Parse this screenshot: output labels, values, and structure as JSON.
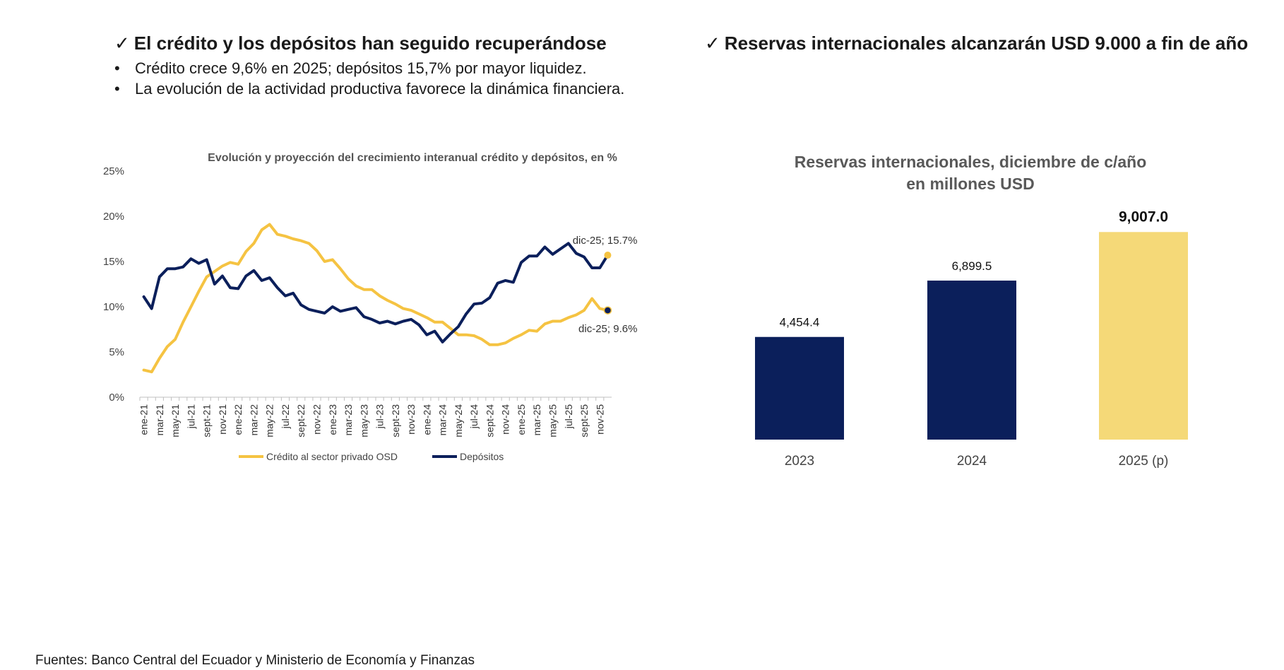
{
  "left_panel": {
    "check_icon": "check-icon",
    "heading": "El crédito y los depósitos han  seguido recuperándose",
    "bullets": [
      "Crédito crece 9,6% en 2025; depósitos 15,7% por mayor liquidez.",
      "La evolución de la actividad productiva favorece la dinámica financiera."
    ]
  },
  "right_panel": {
    "check_icon": "check-icon",
    "heading": "Reservas internacionales alcanzarán USD 9.000 a fin de año"
  },
  "footer": "Fuentes: Banco Central del Ecuador y Ministerio de Economía y Finanzas",
  "chart_data": [
    {
      "type": "line",
      "title": "Evolución y proyección del  crecimiento interanual crédito y depósitos, en %",
      "xlabel": "",
      "ylabel": "",
      "ylim": [
        0,
        25
      ],
      "yticks": [
        "0%",
        "5%",
        "10%",
        "15%",
        "20%",
        "25%"
      ],
      "ytick_values": [
        0,
        5,
        10,
        15,
        20,
        25
      ],
      "x_tick_labels": [
        "ene-21",
        "mar-21",
        "may-21",
        "jul-21",
        "sept-21",
        "nov-21",
        "ene-22",
        "mar-22",
        "may-22",
        "jul-22",
        "sept-22",
        "nov-22",
        "ene-23",
        "mar-23",
        "may-23",
        "jul-23",
        "sept-23",
        "nov-23",
        "ene-24",
        "mar-24",
        "may-24",
        "jul-24",
        "sept-24",
        "nov-24",
        "ene-25",
        "mar-25",
        "may-25",
        "jul-25",
        "sept-25",
        "nov-25"
      ],
      "x": [
        "ene-21",
        "feb-21",
        "mar-21",
        "abr-21",
        "may-21",
        "jun-21",
        "jul-21",
        "ago-21",
        "sept-21",
        "oct-21",
        "nov-21",
        "dic-21",
        "ene-22",
        "feb-22",
        "mar-22",
        "abr-22",
        "may-22",
        "jun-22",
        "jul-22",
        "ago-22",
        "sept-22",
        "oct-22",
        "nov-22",
        "dic-22",
        "ene-23",
        "feb-23",
        "mar-23",
        "abr-23",
        "may-23",
        "jun-23",
        "jul-23",
        "ago-23",
        "sept-23",
        "oct-23",
        "nov-23",
        "dic-23",
        "ene-24",
        "feb-24",
        "mar-24",
        "abr-24",
        "may-24",
        "jun-24",
        "jul-24",
        "ago-24",
        "sept-24",
        "oct-24",
        "nov-24",
        "dic-24",
        "ene-25",
        "feb-25",
        "mar-25",
        "abr-25",
        "may-25",
        "jun-25",
        "jul-25",
        "ago-25",
        "sept-25",
        "oct-25",
        "nov-25",
        "dic-25"
      ],
      "grid": false,
      "legend_position": "bottom",
      "series": [
        {
          "name": "Crédito al sector privado OSD",
          "color": "#F5C342",
          "values": [
            3.0,
            2.8,
            4.3,
            5.6,
            6.4,
            8.3,
            10.0,
            11.7,
            13.3,
            13.9,
            14.5,
            14.9,
            14.7,
            16.1,
            17.0,
            18.5,
            19.1,
            18.0,
            17.8,
            17.5,
            17.3,
            17.0,
            16.2,
            15.0,
            15.2,
            14.2,
            13.1,
            12.3,
            11.9,
            11.9,
            11.2,
            10.7,
            10.3,
            9.8,
            9.6,
            9.2,
            8.8,
            8.3,
            8.3,
            7.6,
            6.9,
            6.9,
            6.8,
            6.4,
            5.8,
            5.8,
            6.0,
            6.5,
            6.9,
            7.4,
            7.3,
            8.1,
            8.4,
            8.4,
            8.8,
            9.1,
            9.6,
            10.9,
            9.8,
            9.6
          ]
        },
        {
          "name": "Depósitos",
          "color": "#0B1F5B",
          "values": [
            11.1,
            9.8,
            13.3,
            14.2,
            14.2,
            14.4,
            15.3,
            14.8,
            15.2,
            12.5,
            13.4,
            12.1,
            12.0,
            13.4,
            14.0,
            12.9,
            13.2,
            12.1,
            11.2,
            11.5,
            10.2,
            9.7,
            9.5,
            9.3,
            10.0,
            9.5,
            9.7,
            9.9,
            8.9,
            8.6,
            8.2,
            8.4,
            8.1,
            8.4,
            8.6,
            8.0,
            6.9,
            7.3,
            6.1,
            7.0,
            7.8,
            9.2,
            10.3,
            10.4,
            11.0,
            12.6,
            12.9,
            12.7,
            14.9,
            15.6,
            15.6,
            16.6,
            15.8,
            16.4,
            17.0,
            15.9,
            15.5,
            14.3,
            14.3,
            15.7
          ]
        }
      ],
      "annotations": [
        {
          "series": "Depósitos",
          "text": "dic-25; 15.7%",
          "x": "dic-25",
          "y": 15.7
        },
        {
          "series": "Crédito al sector privado OSD",
          "text": "dic-25; 9.6%",
          "x": "dic-25",
          "y": 9.6
        }
      ]
    },
    {
      "type": "bar",
      "title": "Reservas internacionales, diciembre de c/año",
      "subtitle": "en millones USD",
      "categories": [
        "2023",
        "2024",
        "2025 (p)"
      ],
      "values": [
        4454.4,
        6899.5,
        9007.0
      ],
      "value_labels": [
        "4,454.4",
        "6,899.5",
        "9,007.0"
      ],
      "colors": [
        "#0B1F5B",
        "#0B1F5B",
        "#F5D978"
      ],
      "ylim": [
        0,
        9200
      ],
      "grid": false
    }
  ]
}
